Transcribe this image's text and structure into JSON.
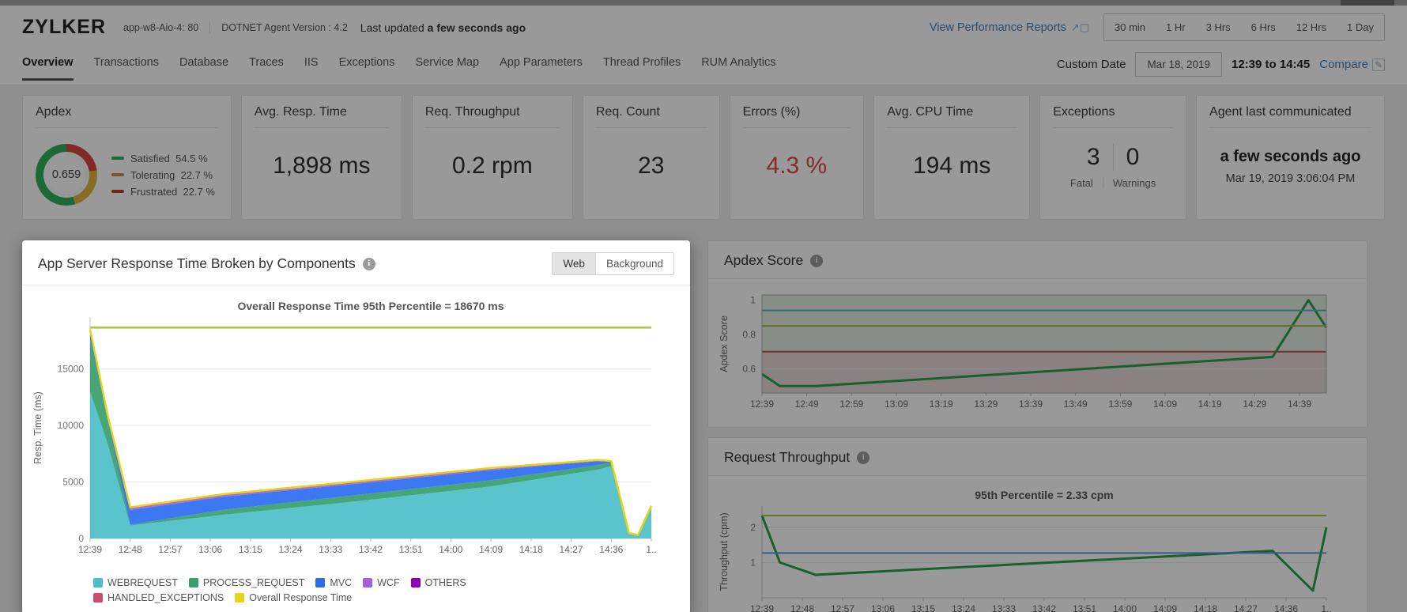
{
  "header": {
    "app_name": "ZYLKER",
    "app_host": "app-w8-Aio-4: 80",
    "agent_version": "DOTNET Agent Version : 4.2",
    "last_updated_label": "Last updated",
    "last_updated_value": "a few seconds ago",
    "view_reports_label": "View Performance Reports",
    "time_ranges": [
      "30 min",
      "1 Hr",
      "3 Hrs",
      "6 Hrs",
      "12 Hrs",
      "1 Day"
    ]
  },
  "nav": {
    "tabs": [
      "Overview",
      "Transactions",
      "Database",
      "Traces",
      "IIS",
      "Exceptions",
      "Service Map",
      "App Parameters",
      "Thread Profiles",
      "RUM Analytics"
    ],
    "active_tab": "Overview",
    "custom_date_label": "Custom Date",
    "custom_date_value": "Mar 18, 2019",
    "time_window": "12:39 to 14:45",
    "compare_label": "Compare"
  },
  "cards": {
    "apdex": {
      "title": "Apdex",
      "score": "0.659",
      "donut_colors": {
        "satisfied": "#2eaf5c",
        "tolerating": "#e0b53e",
        "frustrated": "#d9463e"
      },
      "donut_pcts": {
        "satisfied": 54.5,
        "tolerating": 22.7,
        "frustrated": 22.7
      },
      "legend": [
        {
          "label": "Satisfied",
          "value": "54.5 %",
          "color": "#2eaf5c"
        },
        {
          "label": "Tolerating",
          "value": "22.7 %",
          "color": "#cc8d5a"
        },
        {
          "label": "Frustrated",
          "value": "22.7 %",
          "color": "#c13a30"
        }
      ]
    },
    "metrics": [
      {
        "title": "Avg. Resp. Time",
        "value": "1,898 ms",
        "color": "#2e2e2e"
      },
      {
        "title": "Req. Throughput",
        "value": "0.2 rpm",
        "color": "#2e2e2e"
      },
      {
        "title": "Req. Count",
        "value": "23",
        "color": "#2e2e2e"
      },
      {
        "title": "Errors (%)",
        "value": "4.3 %",
        "color": "#dc4a41"
      },
      {
        "title": "Avg. CPU Time",
        "value": "194 ms",
        "color": "#2e2e2e"
      }
    ],
    "exceptions": {
      "title": "Exceptions",
      "fatal_count": "3",
      "warnings_count": "0",
      "fatal_label": "Fatal",
      "warnings_label": "Warnings"
    },
    "agent": {
      "title": "Agent last communicated",
      "value": "a few seconds ago",
      "timestamp": "Mar 19, 2019 3:06:04 PM"
    }
  },
  "panels": {
    "response": {
      "title": "App Server Response Time Broken by Components",
      "toggle": [
        "Web",
        "Background"
      ],
      "active_toggle": "Web"
    },
    "apdex_score": {
      "title": "Apdex Score"
    },
    "throughput": {
      "title": "Request Throughput"
    }
  },
  "chart_data": [
    {
      "id": "components",
      "type": "area",
      "title": "Overall Response Time 95th Percentile = 18670 ms",
      "ylabel": "Resp. Time (ms)",
      "xmax": 126,
      "x_minutes": [
        0,
        4,
        9,
        30,
        60,
        90,
        114,
        117,
        121,
        123,
        126
      ],
      "series": [
        {
          "name": "WEBREQUEST",
          "color": "#4bbfc7",
          "values": [
            13000,
            8300,
            1150,
            2100,
            3300,
            4600,
            6100,
            6400,
            400,
            250,
            2750
          ]
        },
        {
          "name": "PROCESS_REQUEST",
          "color": "#35a06b",
          "values": [
            4600,
            2000,
            60,
            450,
            550,
            550,
            400,
            300,
            30,
            20,
            60
          ]
        },
        {
          "name": "MVC",
          "color": "#2a6cf0",
          "values": [
            700,
            450,
            1300,
            1150,
            1000,
            900,
            350,
            100,
            30,
            20,
            40
          ]
        },
        {
          "name": "WCF",
          "color": "#a55fe0",
          "values": [
            100,
            30,
            150,
            140,
            130,
            120,
            60,
            30,
            10,
            5,
            20
          ]
        },
        {
          "name": "OTHERS",
          "color": "#8d00b5",
          "values": [
            50,
            10,
            30,
            30,
            30,
            30,
            20,
            10,
            5,
            3,
            10
          ]
        },
        {
          "name": "HANDLED_EXCEPTIONS",
          "color": "#c84f6e",
          "values": [
            50,
            10,
            70,
            60,
            50,
            40,
            20,
            10,
            5,
            2,
            10
          ]
        }
      ],
      "overall_line": {
        "name": "Overall Response Time",
        "color": "#e8d414"
      },
      "percentile_line": {
        "value": 18670,
        "color": "#a3c93e"
      },
      "ymin": 0,
      "ymax": 19600,
      "yticks": [
        0,
        5000,
        10000,
        15000
      ],
      "xticks": [
        "12:39",
        "12:48",
        "12:57",
        "13:06",
        "13:15",
        "13:24",
        "13:33",
        "13:42",
        "13:51",
        "14:00",
        "14:09",
        "14:18",
        "14:27",
        "14:36",
        "1.."
      ],
      "xtick_minutes": [
        0,
        9,
        18,
        27,
        36,
        45,
        54,
        63,
        72,
        81,
        90,
        99,
        108,
        117,
        126
      ]
    },
    {
      "id": "apdex",
      "type": "line",
      "ylabel": "Apdex Score",
      "xmax": 126,
      "x_minutes": [
        0,
        4,
        12,
        114,
        122,
        126
      ],
      "values": [
        0.57,
        0.5,
        0.5,
        0.67,
        1.0,
        0.84
      ],
      "color": "#2ba14f",
      "ymin": 0.46,
      "ymax": 1.03,
      "yticks": [
        0.6,
        0.8,
        1
      ],
      "threshold_lines": [
        {
          "value": 0.94,
          "color": "#4fb8c9"
        },
        {
          "value": 0.85,
          "color": "#a3b83d"
        },
        {
          "value": 0.7,
          "color": "#c0504d"
        }
      ],
      "bands": [
        {
          "from": 0.7,
          "to": 1.03,
          "color": "rgba(170,190,160,0.30)"
        },
        {
          "from": 0.46,
          "to": 0.7,
          "color": "rgba(185,140,140,0.35)"
        }
      ],
      "frame": true,
      "xticks": [
        "12:39",
        "12:49",
        "12:59",
        "13:09",
        "13:19",
        "13:29",
        "13:39",
        "13:49",
        "13:59",
        "14:09",
        "14:19",
        "14:29",
        "14:39"
      ],
      "xtick_minutes": [
        0,
        10,
        20,
        30,
        40,
        50,
        60,
        70,
        80,
        90,
        100,
        110,
        120
      ]
    },
    {
      "id": "throughput",
      "type": "line",
      "title": "95th Percentile = 2.33 cpm",
      "ylabel": "Throughput (cpm)",
      "xmax": 126,
      "x_minutes": [
        0,
        4,
        12,
        114,
        123,
        126
      ],
      "values": [
        2.33,
        1.0,
        0.65,
        1.33,
        0.2,
        2.0
      ],
      "color": "#2ba14f",
      "ymin": 0,
      "ymax": 2.6,
      "yticks": [
        1,
        2
      ],
      "threshold_lines": [
        {
          "value": 2.33,
          "color": "#a3c93e"
        },
        {
          "value": 1.27,
          "color": "#5b9bd5"
        }
      ],
      "xticks": [
        "12:39",
        "12:48",
        "12:57",
        "13:06",
        "13:15",
        "13:24",
        "13:33",
        "13:42",
        "13:51",
        "14:00",
        "14:09",
        "14:18",
        "14:27",
        "14:36",
        "1.."
      ],
      "xtick_minutes": [
        0,
        9,
        18,
        27,
        36,
        45,
        54,
        63,
        72,
        81,
        90,
        99,
        108,
        117,
        126
      ]
    }
  ]
}
